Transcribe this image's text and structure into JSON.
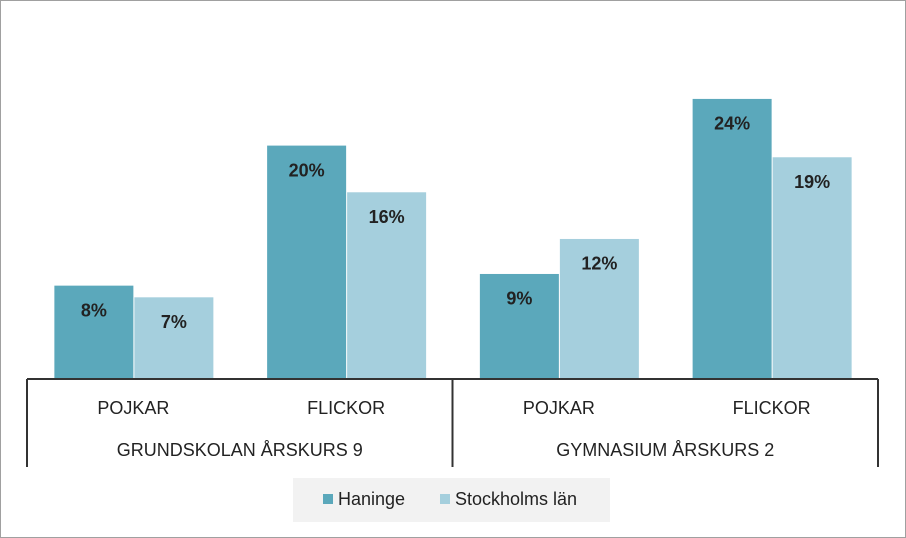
{
  "chart_data": {
    "type": "bar",
    "categories": [
      "POJKAR",
      "FLICKOR",
      "POJKAR",
      "FLICKOR"
    ],
    "groups": [
      "GRUNDSKOLAN ÅRSKURS 9",
      "GYMNASIUM ÅRSKURS 2"
    ],
    "series": [
      {
        "name": "Haninge",
        "color": "#5ba8bb",
        "values": [
          8,
          20,
          9,
          24
        ],
        "value_labels": [
          "8%",
          "20%",
          "9%",
          "24%"
        ]
      },
      {
        "name": "Stockholms län",
        "color": "#a5cfdd",
        "values": [
          7,
          16,
          12,
          19
        ],
        "value_labels": [
          "7%",
          "16%",
          "12%",
          "19%"
        ]
      }
    ],
    "legend": "bottom"
  }
}
